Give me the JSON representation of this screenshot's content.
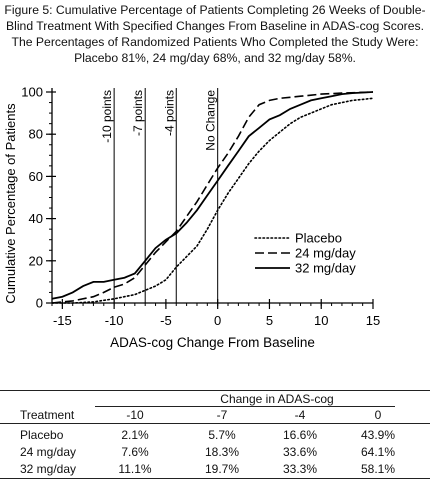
{
  "caption": "Figure 5: Cumulative Percentage of Patients Completing 26 Weeks of Double-Blind Treatment With Specified Changes From Baseline in ADAS-cog Scores. The Percentages of Randomized Patients Who Completed the Study Were: Placebo 81%, 24 mg/day 68%, and 32 mg/day 58%.",
  "chart_data": {
    "type": "line",
    "xlabel": "ADAS-cog Change From Baseline",
    "ylabel": "Cumulative Percentage of Patients",
    "xlim": [
      -16,
      15
    ],
    "ylim": [
      0,
      100
    ],
    "x_ticks": [
      -15,
      -10,
      -5,
      0,
      5,
      10,
      15
    ],
    "y_ticks": [
      0,
      20,
      40,
      60,
      80,
      100
    ],
    "x_minor_step": 1,
    "y_minor_step": 5,
    "grid": false,
    "legend_position": "right",
    "reference_lines": [
      {
        "x": -10,
        "label": "-10 points"
      },
      {
        "x": -7,
        "label": "-7 points"
      },
      {
        "x": -4,
        "label": "-4 points"
      },
      {
        "x": 0,
        "label": "No Change"
      }
    ],
    "series": [
      {
        "name": "Placebo",
        "style": "dotted",
        "points": [
          [
            -16,
            0
          ],
          [
            -14,
            0
          ],
          [
            -12,
            0.5
          ],
          [
            -10,
            2
          ],
          [
            -9,
            3
          ],
          [
            -8,
            4
          ],
          [
            -7,
            6
          ],
          [
            -6,
            8
          ],
          [
            -5,
            11
          ],
          [
            -4,
            17
          ],
          [
            -3,
            22
          ],
          [
            -2,
            27
          ],
          [
            -1,
            35
          ],
          [
            0,
            44
          ],
          [
            1,
            52
          ],
          [
            2,
            59
          ],
          [
            3,
            66
          ],
          [
            4,
            72
          ],
          [
            5,
            77
          ],
          [
            6,
            81
          ],
          [
            7,
            85
          ],
          [
            8,
            88
          ],
          [
            9,
            90
          ],
          [
            10,
            92
          ],
          [
            11,
            94
          ],
          [
            12,
            95
          ],
          [
            13,
            96
          ],
          [
            14,
            96.5
          ],
          [
            15,
            97
          ]
        ]
      },
      {
        "name": "24 mg/day",
        "style": "dashed",
        "points": [
          [
            -16,
            0
          ],
          [
            -14,
            1
          ],
          [
            -12,
            3
          ],
          [
            -11,
            5
          ],
          [
            -10,
            7.5
          ],
          [
            -9,
            9
          ],
          [
            -8,
            12
          ],
          [
            -7,
            18
          ],
          [
            -6,
            24
          ],
          [
            -5,
            29
          ],
          [
            -4,
            34
          ],
          [
            -3,
            41
          ],
          [
            -2,
            48
          ],
          [
            -1,
            56
          ],
          [
            0,
            64
          ],
          [
            1,
            71
          ],
          [
            2,
            79
          ],
          [
            3,
            88
          ],
          [
            4,
            94
          ],
          [
            5,
            96
          ],
          [
            6,
            97
          ],
          [
            7,
            97.5
          ],
          [
            8,
            98
          ],
          [
            9,
            98.5
          ],
          [
            10,
            99
          ],
          [
            12,
            99.5
          ],
          [
            15,
            100
          ]
        ]
      },
      {
        "name": "32 mg/day",
        "style": "solid",
        "points": [
          [
            -16,
            2
          ],
          [
            -15,
            3
          ],
          [
            -14,
            5
          ],
          [
            -13,
            8
          ],
          [
            -12,
            10
          ],
          [
            -11,
            10
          ],
          [
            -10,
            11
          ],
          [
            -9,
            12
          ],
          [
            -8,
            14
          ],
          [
            -7,
            20
          ],
          [
            -6,
            26
          ],
          [
            -5,
            30
          ],
          [
            -4,
            33
          ],
          [
            -3,
            38
          ],
          [
            -2,
            44
          ],
          [
            -1,
            51
          ],
          [
            0,
            58
          ],
          [
            1,
            65
          ],
          [
            2,
            72
          ],
          [
            3,
            79
          ],
          [
            4,
            83
          ],
          [
            5,
            87
          ],
          [
            6,
            89
          ],
          [
            7,
            92
          ],
          [
            8,
            94
          ],
          [
            9,
            96
          ],
          [
            10,
            97
          ],
          [
            11,
            98
          ],
          [
            12,
            99
          ],
          [
            13,
            99.5
          ],
          [
            15,
            100
          ]
        ]
      }
    ]
  },
  "table": {
    "group_header": "Change in ADAS-cog",
    "col_header": "Treatment",
    "columns": [
      "-10",
      "-7",
      "-4",
      "0"
    ],
    "rows": [
      {
        "label": "Placebo",
        "values": [
          "2.1%",
          "5.7%",
          "16.6%",
          "43.9%"
        ]
      },
      {
        "label": "24 mg/day",
        "values": [
          "7.6%",
          "18.3%",
          "33.6%",
          "64.1%"
        ]
      },
      {
        "label": "32 mg/day",
        "values": [
          "11.1%",
          "19.7%",
          "33.3%",
          "58.1%"
        ]
      }
    ]
  }
}
